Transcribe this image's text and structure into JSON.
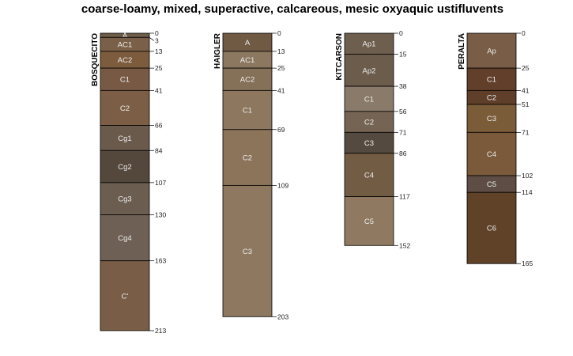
{
  "chart_data": {
    "type": "soil-profile-sketch",
    "title": "coarse-loamy, mixed, superactive, calcareous, mesic oxyaquic ustifluvents",
    "depth_units": "cm",
    "profiles": [
      {
        "name": "BOSQUECITO",
        "horizons": [
          {
            "name": "A",
            "top": 0,
            "bottom": 3,
            "color": "#6d5c48"
          },
          {
            "name": "AC1",
            "top": 3,
            "bottom": 13,
            "color": "#7a6048"
          },
          {
            "name": "AC2",
            "top": 13,
            "bottom": 25,
            "color": "#7d5c3e"
          },
          {
            "name": "C1",
            "top": 25,
            "bottom": 41,
            "color": "#785a44"
          },
          {
            "name": "C2",
            "top": 41,
            "bottom": 66,
            "color": "#7b5e45"
          },
          {
            "name": "Cg1",
            "top": 66,
            "bottom": 84,
            "color": "#6a5a4c"
          },
          {
            "name": "Cg2",
            "top": 84,
            "bottom": 107,
            "color": "#54473b"
          },
          {
            "name": "Cg3",
            "top": 107,
            "bottom": 130,
            "color": "#6b5d50"
          },
          {
            "name": "Cg4",
            "top": 130,
            "bottom": 163,
            "color": "#6e6054"
          },
          {
            "name": "C'",
            "top": 163,
            "bottom": 213,
            "color": "#7a5d46"
          }
        ]
      },
      {
        "name": "HAIGLER",
        "horizons": [
          {
            "name": "A",
            "top": 0,
            "bottom": 13,
            "color": "#705a44"
          },
          {
            "name": "AC1",
            "top": 13,
            "bottom": 25,
            "color": "#8c7860"
          },
          {
            "name": "AC2",
            "top": 25,
            "bottom": 41,
            "color": "#857058"
          },
          {
            "name": "C1",
            "top": 41,
            "bottom": 69,
            "color": "#8d775f"
          },
          {
            "name": "C2",
            "top": 69,
            "bottom": 109,
            "color": "#8c745b"
          },
          {
            "name": "C3",
            "top": 109,
            "bottom": 203,
            "color": "#8e7860"
          }
        ]
      },
      {
        "name": "KITCARSON",
        "horizons": [
          {
            "name": "Ap1",
            "top": 0,
            "bottom": 15,
            "color": "#6e5e4e"
          },
          {
            "name": "Ap2",
            "top": 15,
            "bottom": 38,
            "color": "#6c5c4c"
          },
          {
            "name": "C1",
            "top": 38,
            "bottom": 56,
            "color": "#8a7a6a"
          },
          {
            "name": "C2",
            "top": 56,
            "bottom": 71,
            "color": "#756454"
          },
          {
            "name": "C3",
            "top": 71,
            "bottom": 86,
            "color": "#554a40"
          },
          {
            "name": "C4",
            "top": 86,
            "bottom": 117,
            "color": "#735c44"
          },
          {
            "name": "C5",
            "top": 117,
            "bottom": 152,
            "color": "#8f7960"
          }
        ]
      },
      {
        "name": "PERALTA",
        "horizons": [
          {
            "name": "Ap",
            "top": 0,
            "bottom": 25,
            "color": "#795d46"
          },
          {
            "name": "C1",
            "top": 25,
            "bottom": 41,
            "color": "#623f2a"
          },
          {
            "name": "C2",
            "top": 41,
            "bottom": 51,
            "color": "#5f3f2a"
          },
          {
            "name": "C3",
            "top": 51,
            "bottom": 71,
            "color": "#7b5c38"
          },
          {
            "name": "C4",
            "top": 71,
            "bottom": 102,
            "color": "#7a5a3a"
          },
          {
            "name": "C5",
            "top": 102,
            "bottom": 114,
            "color": "#5d4d44"
          },
          {
            "name": "C6",
            "top": 114,
            "bottom": 165,
            "color": "#5f4228"
          }
        ]
      }
    ]
  }
}
